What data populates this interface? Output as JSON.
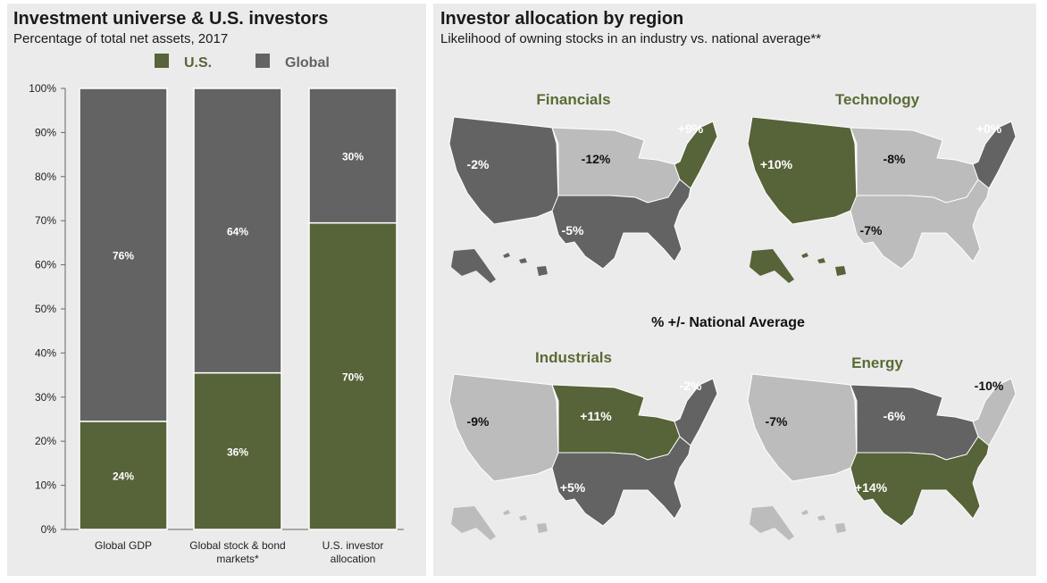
{
  "left": {
    "title": "Investment universe & U.S. investors",
    "subtitle": "Percentage of total net assets, 2017"
  },
  "right": {
    "title": "Investor allocation by region",
    "subtitle": "Likelihood of owning stocks in an industry vs. national average**",
    "center_label": "% +/- National Average"
  },
  "chart_data": [
    {
      "type": "bar",
      "stacked": true,
      "categories": [
        "Global GDP",
        "Global stock & bond markets*",
        "U.S. investor allocation"
      ],
      "series": [
        {
          "name": "U.S.",
          "values": [
            24,
            36,
            70
          ],
          "labels": [
            "24%",
            "36%",
            "70%"
          ],
          "color": "#576338"
        },
        {
          "name": "Global",
          "values": [
            76,
            64,
            30
          ],
          "labels": [
            "76%",
            "64%",
            "30%"
          ],
          "color": "#636363"
        }
      ],
      "exact_values": {
        "U.S.": [
          24.5,
          35.5,
          69.5
        ],
        "Global": [
          75.5,
          64.5,
          30.5
        ]
      },
      "ylim": [
        0,
        100
      ],
      "yticks": [
        "0%",
        "10%",
        "20%",
        "30%",
        "40%",
        "50%",
        "60%",
        "70%",
        "80%",
        "90%",
        "100%"
      ],
      "legend_position": "top"
    },
    {
      "type": "choropleth",
      "unit": "% +/- National Average",
      "maps": [
        {
          "title": "Financials",
          "regions": {
            "West": "-2%",
            "Midwest": "-12%",
            "South": "-5%",
            "Northeast": "+9%"
          }
        },
        {
          "title": "Technology",
          "regions": {
            "West": "+10%",
            "Midwest": "-8%",
            "South": "-7%",
            "Northeast": "+0%"
          }
        },
        {
          "title": "Industrials",
          "regions": {
            "West": "-9%",
            "Midwest": "+11%",
            "South": "+5%",
            "Northeast": "-2%"
          }
        },
        {
          "title": "Energy",
          "regions": {
            "West": "-7%",
            "Midwest": "-6%",
            "South": "+14%",
            "Northeast": "-10%"
          }
        }
      ]
    }
  ],
  "colors": {
    "green": "#576338",
    "dark_gray": "#636363",
    "light_gray": "#bcbcbc",
    "map_title": "#5a6b35"
  }
}
